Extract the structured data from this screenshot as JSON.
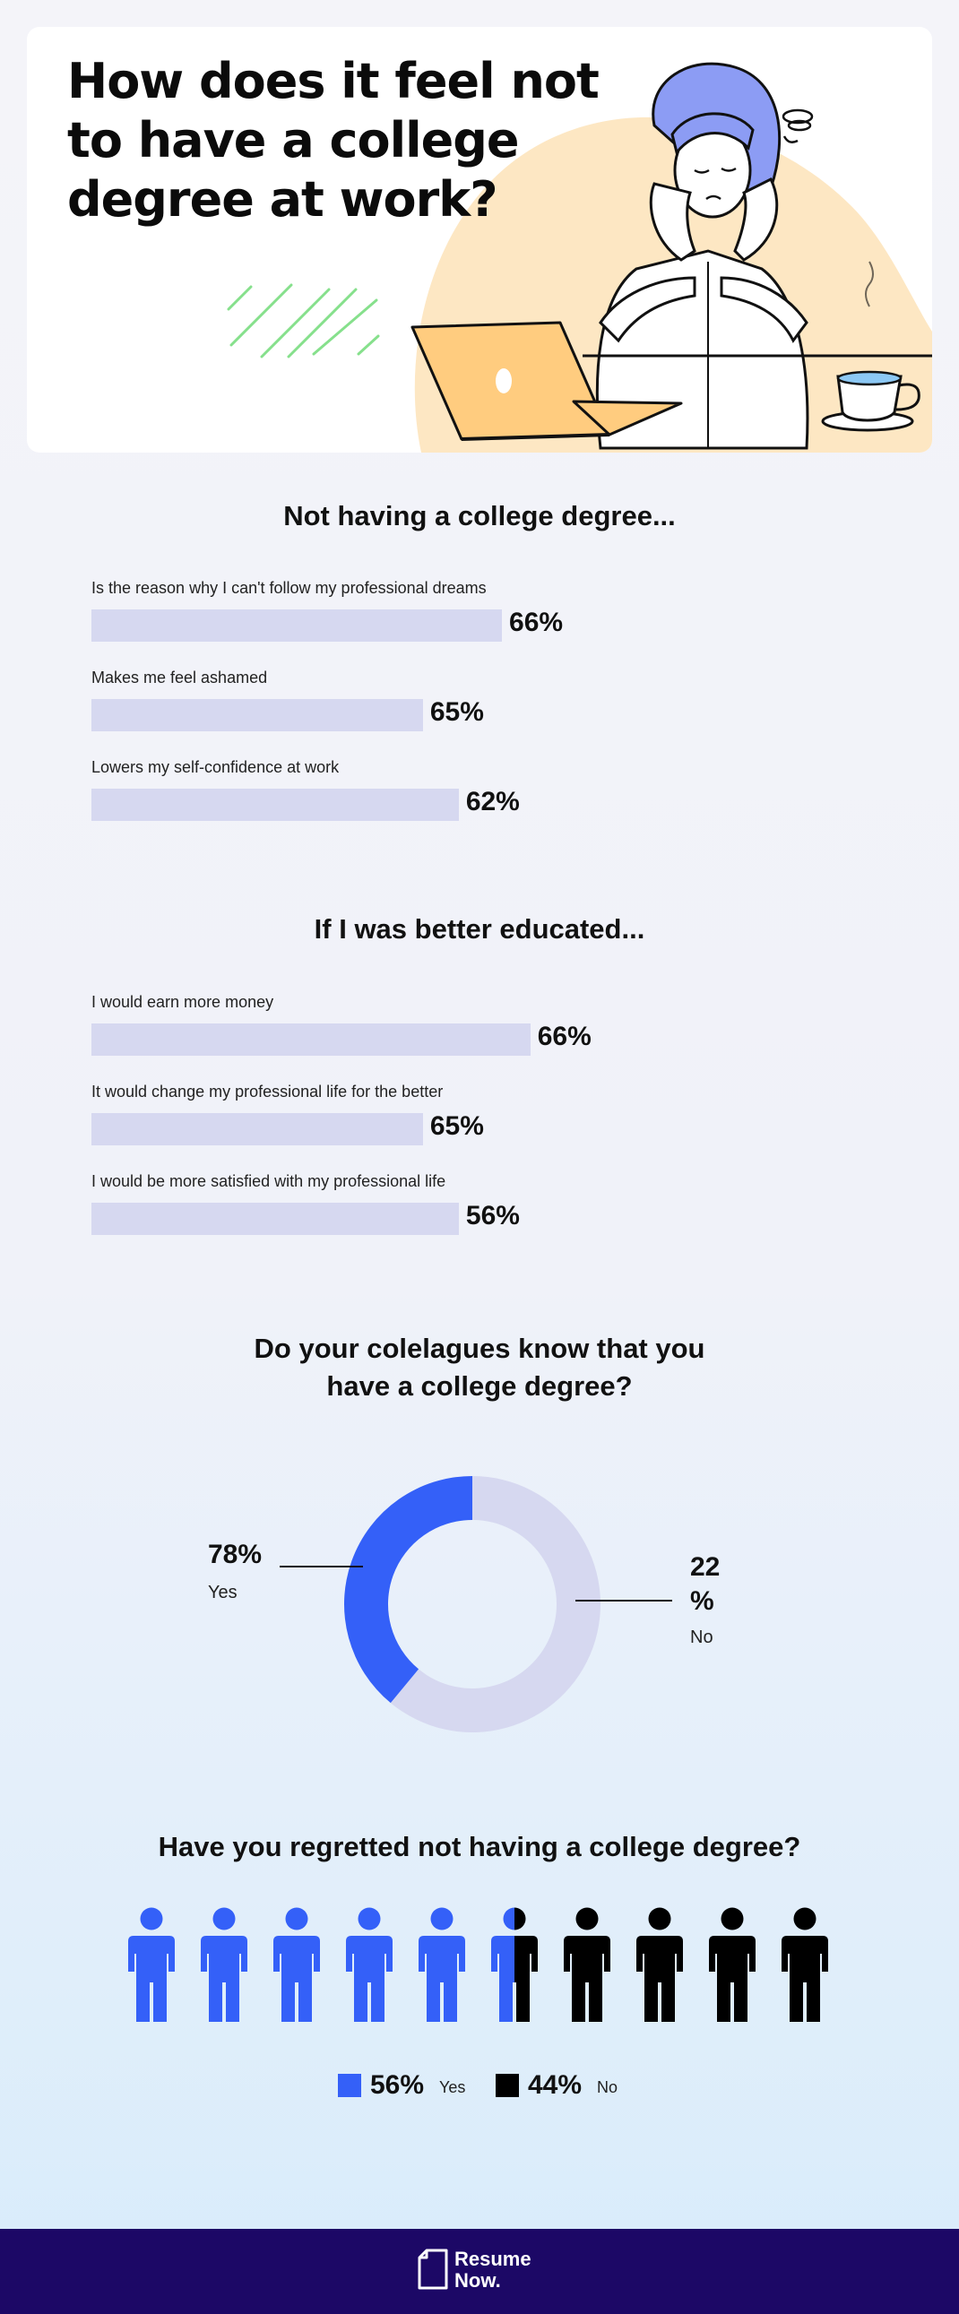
{
  "header": {
    "title": "How does it feel not to have a college degree at work?"
  },
  "colors": {
    "bar": "#d6d8f0",
    "donut_yes": "#3460f8",
    "donut_no": "#d6d8f0",
    "people_yes": "#3460f8",
    "people_no": "#000000",
    "footer": "#1c0866",
    "hero_blob": "#fde7c3",
    "laptop": "#ffcc7f",
    "hair": "#8c9cf4"
  },
  "chart_data": [
    {
      "type": "bar",
      "title": "Not having a college degree...",
      "categories": [
        "Is the reason why I can't follow my professional dreams",
        "Makes me feel ashamed",
        "Lowers my self-confidence at work"
      ],
      "values": [
        66,
        65,
        62
      ],
      "value_labels": [
        "66%",
        "65%",
        "62%"
      ],
      "unit": "%"
    },
    {
      "type": "bar",
      "title": "If I was better educated...",
      "categories": [
        "I would earn more money",
        "It would change my professional life for the better",
        "I would be more satisfied with my professional life"
      ],
      "values": [
        66,
        65,
        56
      ],
      "value_labels": [
        "66%",
        "65%",
        "56%"
      ],
      "unit": "%"
    },
    {
      "type": "pie",
      "title": "Do your colelagues know that you have a college degree?",
      "categories": [
        "Yes",
        "No"
      ],
      "values": [
        78,
        22
      ],
      "value_labels": [
        "78%",
        "22 %"
      ],
      "donut": true
    },
    {
      "type": "bar",
      "chart_style": "pictogram",
      "title": "Have you regretted not having a college degree?",
      "categories": [
        "Yes",
        "No"
      ],
      "values": [
        56,
        44
      ],
      "value_labels": [
        "56%",
        "44%"
      ],
      "icon": "person-icon",
      "icon_count": 10
    }
  ],
  "footer": {
    "logo_text": "Resume Now."
  }
}
